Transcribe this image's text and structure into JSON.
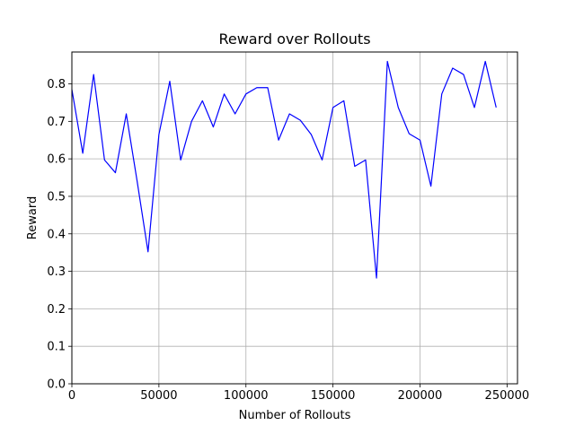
{
  "chart_data": {
    "type": "line",
    "title": "Reward over Rollouts",
    "xlabel": "Number of Rollouts",
    "ylabel": "Reward",
    "xlim": [
      0,
      256000
    ],
    "ylim": [
      0,
      0.885
    ],
    "xticks": [
      0,
      50000,
      100000,
      150000,
      200000,
      250000
    ],
    "xtick_labels": [
      "0",
      "50000",
      "100000",
      "150000",
      "200000",
      "250000"
    ],
    "yticks": [
      0.0,
      0.1,
      0.2,
      0.3,
      0.4,
      0.5,
      0.6,
      0.7,
      0.8
    ],
    "ytick_labels": [
      "0.0",
      "0.1",
      "0.2",
      "0.3",
      "0.4",
      "0.5",
      "0.6",
      "0.7",
      "0.8"
    ],
    "grid": true,
    "line_color": "#0000ff",
    "series": [
      {
        "x": [
          0,
          6250,
          12500,
          18750,
          25000,
          31250,
          37500,
          43750,
          50000,
          56250,
          62500,
          68750,
          75000,
          81250,
          87500,
          93750,
          100000,
          106250,
          112500,
          118750,
          125000,
          131250,
          137500,
          143750,
          150000,
          156250,
          162500,
          168750,
          175000,
          181250,
          187500,
          193750,
          200000,
          206250,
          212500,
          218750,
          225000,
          231250,
          237500,
          243750
        ],
        "values": [
          0.785,
          0.615,
          0.825,
          0.597,
          0.563,
          0.72,
          0.54,
          0.352,
          0.665,
          0.807,
          0.597,
          0.7,
          0.755,
          0.685,
          0.773,
          0.72,
          0.773,
          0.79,
          0.79,
          0.65,
          0.72,
          0.703,
          0.665,
          0.597,
          0.737,
          0.755,
          0.58,
          0.597,
          0.282,
          0.86,
          0.737,
          0.667,
          0.65,
          0.527,
          0.773,
          0.842,
          0.825,
          0.737,
          0.86,
          0.737
        ]
      }
    ]
  }
}
